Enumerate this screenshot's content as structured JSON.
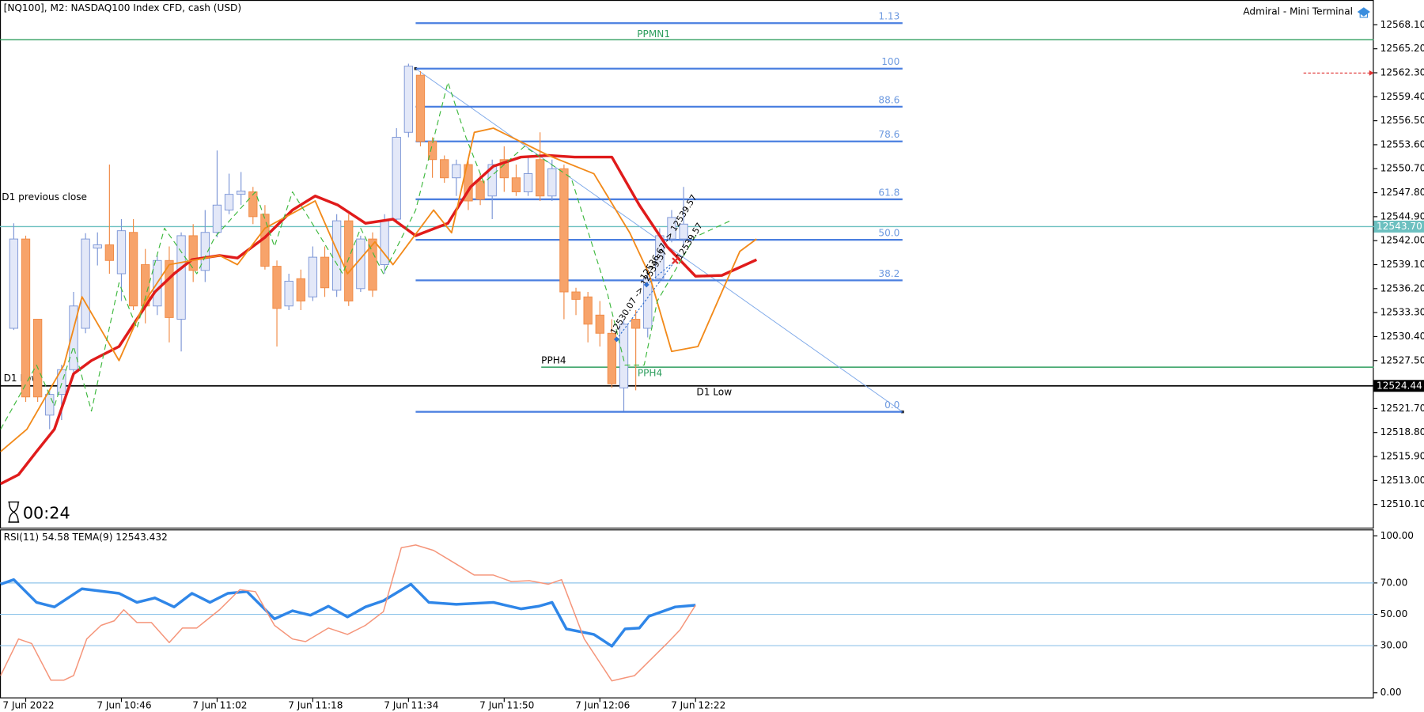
{
  "header": {
    "title": "[NQ100], M2:  NASDAQ100 Index CFD, cash (USD)",
    "terminal": "Admiral - Mini Terminal",
    "timer": "00:24"
  },
  "chart_data": [
    {
      "type": "candlestick",
      "open": [
        12531.4,
        12542.2,
        12532.5,
        12520.9,
        12523.4,
        12526.4,
        12531.4,
        12541.1,
        12541.5,
        12538.0,
        12543.0,
        12539.1,
        12534.1,
        12539.6,
        12532.5,
        12542.6,
        12538.4,
        12543.0,
        12545.7,
        12547.6,
        12547.9,
        12545.2,
        12538.9,
        12534.1,
        12537.4,
        12535.2,
        12540.0,
        12536.0,
        12544.4,
        12536.2,
        12542.2,
        12539.1,
        12544.6,
        12555.1,
        12562.0,
        12554.0,
        12551.8,
        12549.6,
        12551.2,
        12549.2,
        12547.4,
        12551.8,
        12549.6,
        12547.9,
        12551.8,
        12547.4,
        12550.7,
        12535.8,
        12535.2,
        12533.0,
        12530.8,
        12524.2,
        12532.5,
        12531.4,
        12537.4,
        12542.2,
        12542.2
      ],
      "high": [
        12544.1,
        12542.6,
        12532.5,
        12524.0,
        12527.0,
        12535.8,
        12542.9,
        12543.0,
        12551.2,
        12544.6,
        12544.6,
        12541.0,
        12540.2,
        12541.3,
        12543.0,
        12544.0,
        12545.7,
        12552.9,
        12550.1,
        12550.3,
        12548.5,
        12546.3,
        12539.6,
        12538.0,
        12538.5,
        12541.3,
        12541.3,
        12545.2,
        12545.2,
        12542.6,
        12543.0,
        12545.2,
        12555.6,
        12563.4,
        12562.5,
        12554.5,
        12552.3,
        12551.8,
        12551.8,
        12550.1,
        12551.8,
        12553.4,
        12551.2,
        12552.3,
        12555.1,
        12551.8,
        12551.2,
        12536.3,
        12535.8,
        12534.7,
        12532.5,
        12532.5,
        12533.6,
        12538.5,
        12543.5,
        12545.7,
        12548.5
      ],
      "low": [
        12531.2,
        12522.5,
        12522.5,
        12519.2,
        12520.3,
        12525.9,
        12530.8,
        12539.0,
        12538.0,
        12534.7,
        12533.6,
        12532.0,
        12533.0,
        12529.7,
        12528.6,
        12537.0,
        12537.0,
        12542.4,
        12545.2,
        12546.3,
        12544.0,
        12538.5,
        12529.2,
        12533.6,
        12533.6,
        12534.7,
        12535.2,
        12535.2,
        12534.1,
        12535.8,
        12535.2,
        12538.0,
        12544.1,
        12554.5,
        12553.4,
        12549.6,
        12549.0,
        12547.4,
        12545.7,
        12546.3,
        12544.6,
        12547.9,
        12547.4,
        12547.4,
        12546.8,
        12546.8,
        12532.5,
        12533.0,
        12529.7,
        12529.2,
        12524.2,
        12521.4,
        12523.9,
        12530.3,
        12536.9,
        12541.8,
        12541.3
      ],
      "close": [
        12542.2,
        12523.1,
        12523.1,
        12523.4,
        12526.4,
        12534.1,
        12542.2,
        12541.5,
        12539.6,
        12543.2,
        12534.1,
        12534.1,
        12539.6,
        12532.7,
        12542.6,
        12538.4,
        12543.0,
        12546.3,
        12547.6,
        12548.0,
        12544.9,
        12538.9,
        12533.8,
        12537.1,
        12534.7,
        12540.0,
        12536.3,
        12544.4,
        12534.7,
        12542.2,
        12536.0,
        12544.4,
        12554.5,
        12563.1,
        12554.0,
        12551.8,
        12549.6,
        12551.2,
        12546.8,
        12547.0,
        12551.2,
        12549.6,
        12547.9,
        12550.1,
        12547.4,
        12550.7,
        12535.8,
        12534.9,
        12531.9,
        12530.8,
        12524.7,
        12531.9,
        12531.4,
        12537.4,
        12542.6,
        12544.8,
        12544.0
      ],
      "up_color": "#e3e8f8",
      "up_border": "#7b95d6",
      "down_color": "#f7a36a",
      "down_border": "#f08a45",
      "xlim": [
        -1.15,
        113.7
      ],
      "ylim": [
        12507.3,
        12571.1
      ],
      "yticks": [
        {
          "value": 12568.1,
          "label": "12568.10"
        },
        {
          "value": 12565.2,
          "label": "12565.20"
        },
        {
          "value": 12562.3,
          "label": "12562.30"
        },
        {
          "value": 12559.4,
          "label": "12559.40"
        },
        {
          "value": 12556.5,
          "label": "12556.50"
        },
        {
          "value": 12553.6,
          "label": "12553.60"
        },
        {
          "value": 12550.7,
          "label": "12550.70"
        },
        {
          "value": 12547.8,
          "label": "12547.80"
        },
        {
          "value": 12544.9,
          "label": "12544.90"
        },
        {
          "value": 12542,
          "label": "12542.00"
        },
        {
          "value": 12539.1,
          "label": "12539.10"
        },
        {
          "value": 12536.2,
          "label": "12536.20"
        },
        {
          "value": 12533.3,
          "label": "12533.30"
        },
        {
          "value": 12530.4,
          "label": "12530.40"
        },
        {
          "value": 12527.5,
          "label": "12527.50"
        },
        {
          "value": 12521.7,
          "label": "12521.70"
        },
        {
          "value": 12518.8,
          "label": "12518.80"
        },
        {
          "value": 12515.9,
          "label": "12515.90"
        },
        {
          "value": 12513,
          "label": "12513.00"
        },
        {
          "value": 12510.1,
          "label": "12510.10"
        }
      ],
      "series": [
        {
          "color": "#e01b1b",
          "width": 3,
          "dashed": false,
          "x": [
            -1.1,
            0.4,
            1.9,
            3.4,
            5.0,
            6.5,
            8.8,
            10.3,
            11.8,
            13.4,
            14.9,
            17.2,
            18.7,
            21.0,
            23.3,
            25.2,
            27.1,
            29.4,
            31.7,
            33.6,
            36.3,
            38.2,
            40.1,
            42.4,
            44.7,
            46.9,
            50.0,
            52.3,
            54.6,
            57.0,
            59.2,
            62.1
          ],
          "values": [
            12512.6,
            12513.7,
            12516.5,
            12519.2,
            12525.9,
            12527.5,
            12529.2,
            12532.5,
            12535.8,
            12538.0,
            12539.7,
            12540.2,
            12539.9,
            12542.4,
            12545.7,
            12547.4,
            12546.3,
            12544.1,
            12544.6,
            12542.6,
            12544.1,
            12548.5,
            12551.0,
            12552.1,
            12552.3,
            12552.1,
            12552.1,
            12546.3,
            12541.3,
            12537.7,
            12537.8,
            12539.7
          ]
        },
        {
          "color": "#f28a1a",
          "width": 1.6,
          "dashed": false,
          "x": [
            -1.1,
            1.1,
            4.2,
            5.7,
            8.8,
            11.0,
            13.0,
            17.2,
            18.7,
            21.0,
            25.2,
            26.7,
            27.9,
            30.2,
            31.7,
            35.1,
            36.6,
            38.5,
            40.1,
            44.7,
            48.5,
            51.5,
            53.1,
            55.0,
            57.2,
            59.2,
            60.7,
            62.1
          ],
          "values": [
            12516.5,
            12519.2,
            12526.96,
            12535.2,
            12527.5,
            12534.7,
            12539.1,
            12540.2,
            12539.1,
            12543.5,
            12546.8,
            12541.85,
            12538.0,
            12541.85,
            12539.1,
            12545.7,
            12542.95,
            12555.1,
            12555.6,
            12552.3,
            12550.1,
            12542.95,
            12538.0,
            12528.6,
            12529.2,
            12535.8,
            12540.7,
            12542.2
          ]
        },
        {
          "color": "#3db83d",
          "width": 1,
          "dashed": true,
          "x": [
            -1.1,
            1.9,
            3.4,
            5.0,
            6.5,
            8.8,
            10.3,
            12.6,
            15.3,
            16.8,
            20.2,
            21.8,
            23.3,
            25.2,
            27.5,
            29.0,
            30.9,
            33.6,
            36.3,
            37.8,
            39.3,
            42.7,
            46.6,
            49.6,
            51.1,
            52.7,
            53.8,
            56.9,
            59.9
          ],
          "values": [
            12519.2,
            12526.96,
            12522.0,
            12529.2,
            12521.4,
            12536.9,
            12531.4,
            12543.5,
            12538.0,
            12542.4,
            12547.9,
            12541.3,
            12547.9,
            12543.5,
            12538.0,
            12543.5,
            12538.0,
            12545.7,
            12561.15,
            12554.5,
            12549.0,
            12553.4,
            12549.6,
            12535.8,
            12526.96,
            12526.96,
            12534.7,
            12542.4,
            12544.4
          ]
        }
      ],
      "levels": [
        {
          "value": 12566.3,
          "color": "#2e9e5e",
          "labels": [
            "PPMN1"
          ]
        },
        {
          "value": 12526.7,
          "color": "#2e9e5e",
          "from_x": 44.1,
          "labels": [
            "PPH4",
            "PPH4"
          ]
        },
        {
          "value": 12524.44,
          "value_label": "12524.44",
          "color": "#000000",
          "labels": [
            "D1 Low",
            "D1 Low"
          ]
        },
        {
          "value": 12543.7,
          "value_label": "12543.70",
          "color": "#6cc0c0",
          "labels": [
            "D1 previous close"
          ]
        }
      ],
      "fibonacci": {
        "color": "#4a7fe0",
        "from_x": 33.6,
        "to_x": 74.3,
        "anchor": [
          12562.8,
          12521.3
        ],
        "levels": [
          {
            "label": "1.13",
            "value": 12568.3
          },
          {
            "label": "100",
            "value": 12562.8
          },
          {
            "label": "88.6",
            "value": 12558.2
          },
          {
            "label": "78.6",
            "value": 12554.0
          },
          {
            "label": "61.8",
            "value": 12547.0
          },
          {
            "label": "50.0",
            "value": 12542.1
          },
          {
            "label": "38.2",
            "value": 12537.2
          },
          {
            "label": "0.0",
            "value": 12521.3
          }
        ]
      },
      "trades": [
        {
          "label": "12530.07 -> 12539.57",
          "entry_x": 50.4,
          "entry": 12530.07,
          "exit_x": 55.3,
          "exit": 12539.57
        },
        {
          "label": "12536.67 -> 12539.57",
          "entry_x": 52.9,
          "entry": 12536.67,
          "exit_x": 55.3,
          "exit": 12539.57
        }
      ],
      "grid": false
    },
    {
      "type": "line",
      "title": "RSI(11) 54.58 TEMA(9) 12543.432",
      "xlim": [
        -1.15,
        113.7
      ],
      "ylim": [
        -3.5,
        104.1
      ],
      "yticks": [
        {
          "value": 100,
          "label": "100.00"
        },
        {
          "value": 70,
          "label": "70.00"
        },
        {
          "value": 50,
          "label": "50.00"
        },
        {
          "value": 30,
          "label": "30.00"
        },
        {
          "value": 0,
          "label": "0.00"
        }
      ],
      "levels": [
        70,
        50,
        30
      ],
      "level_color": "#8fc4ea",
      "xticks": [
        {
          "value": 1,
          "label": "7 Jun 2022"
        },
        {
          "value": 9,
          "label": "7 Jun 10:46"
        },
        {
          "value": 17,
          "label": "7 Jun 11:02"
        },
        {
          "value": 25,
          "label": "7 Jun 11:18"
        },
        {
          "value": 33,
          "label": "7 Jun 11:34"
        },
        {
          "value": 41,
          "label": "7 Jun 11:50"
        },
        {
          "value": 49,
          "label": "7 Jun 12:06"
        },
        {
          "value": 57,
          "label": "7 Jun 12:22"
        }
      ],
      "series": [
        {
          "color": "#2f86e8",
          "width": 3,
          "dashed": false,
          "x": [
            -1.1,
            0,
            1.9,
            3.4,
            5.7,
            8.8,
            10.3,
            11.8,
            13.4,
            14.9,
            16.4,
            17.9,
            19.5,
            21.8,
            23.3,
            24.8,
            26.3,
            27.9,
            29.4,
            30.9,
            33.2,
            34.7,
            37.0,
            40.1,
            42.4,
            43.9,
            45.0,
            46.2,
            48.5,
            50.0,
            51.1,
            52.3,
            53.1,
            55.3,
            57.0
          ],
          "values": [
            69.2,
            72.1,
            57.6,
            54.7,
            66.3,
            63.4,
            57.6,
            60.5,
            54.7,
            63.4,
            57.6,
            63.4,
            64.5,
            47.1,
            52.3,
            49.4,
            55.2,
            48.3,
            54.7,
            58.7,
            69.2,
            57.6,
            56.4,
            57.6,
            53.5,
            55.2,
            57.6,
            40.7,
            37.2,
            29.7,
            40.7,
            41.3,
            48.8,
            54.7,
            55.8
          ]
        },
        {
          "color": "#f5957a",
          "width": 1.3,
          "dashed": false,
          "x": [
            -1.1,
            0.4,
            1.5,
            3.1,
            4.2,
            5.0,
            6.1,
            7.3,
            8.4,
            9.2,
            10.3,
            11.5,
            13.0,
            14.1,
            15.3,
            17.2,
            18.9,
            20.2,
            21.8,
            23.3,
            24.4,
            26.3,
            27.9,
            29.4,
            30.9,
            32.4,
            33.6,
            35.1,
            37.0,
            38.5,
            40.1,
            41.6,
            43.1,
            44.7,
            45.8,
            47.7,
            50.0,
            51.9,
            54.6,
            55.7,
            57.0
          ],
          "values": [
            11.0,
            34.3,
            31.4,
            8.1,
            8.1,
            11.0,
            34.3,
            43.0,
            45.9,
            52.9,
            44.8,
            44.8,
            32.0,
            41.3,
            41.3,
            52.9,
            65.7,
            64.5,
            43.0,
            34.3,
            32.6,
            41.3,
            37.2,
            43.0,
            51.7,
            92.4,
            94.2,
            90.7,
            82.0,
            75.0,
            75.0,
            70.9,
            71.5,
            69.2,
            72.1,
            34.3,
            7.6,
            11.0,
            31.4,
            40.1,
            55.8
          ]
        }
      ]
    }
  ]
}
